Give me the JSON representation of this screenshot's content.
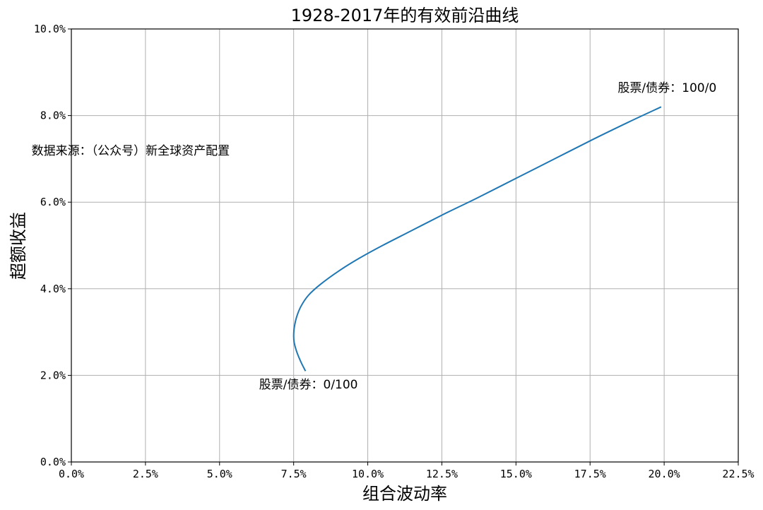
{
  "chart_data": {
    "type": "line",
    "title": "1928-2017年的有效前沿曲线",
    "xlabel": "组合波动率",
    "ylabel": "超额收益",
    "xlim": [
      0,
      22.5
    ],
    "ylim": [
      0,
      10
    ],
    "x_ticks": [
      "0.0%",
      "2.5%",
      "5.0%",
      "7.5%",
      "10.0%",
      "12.5%",
      "15.0%",
      "17.5%",
      "20.0%",
      "22.5%"
    ],
    "y_ticks": [
      "0.0%",
      "2.0%",
      "4.0%",
      "6.0%",
      "8.0%",
      "10.0%"
    ],
    "grid": true,
    "series_color": "#1f77b4",
    "series": [
      {
        "x": [
          7.9,
          7.75,
          7.6,
          7.52,
          7.5,
          7.52,
          7.6,
          7.75,
          8.0,
          8.4,
          9.0,
          9.7,
          10.5,
          11.5,
          12.5,
          13.7,
          15.0,
          16.3,
          17.6,
          18.8,
          19.9
        ],
        "y": [
          2.1,
          2.3,
          2.55,
          2.75,
          2.9,
          3.1,
          3.35,
          3.6,
          3.85,
          4.1,
          4.4,
          4.7,
          5.0,
          5.35,
          5.7,
          6.1,
          6.55,
          7.0,
          7.45,
          7.85,
          8.2
        ]
      }
    ],
    "annotations": [
      {
        "text": "股票/债券：100/0",
        "x": 20.1,
        "y": 8.55
      },
      {
        "text": "股票/债券：0/100",
        "x": 8.0,
        "y": 1.7
      },
      {
        "text": "数据来源：（公众号）新全球资产配置",
        "x": 2.0,
        "y": 7.1
      }
    ]
  }
}
